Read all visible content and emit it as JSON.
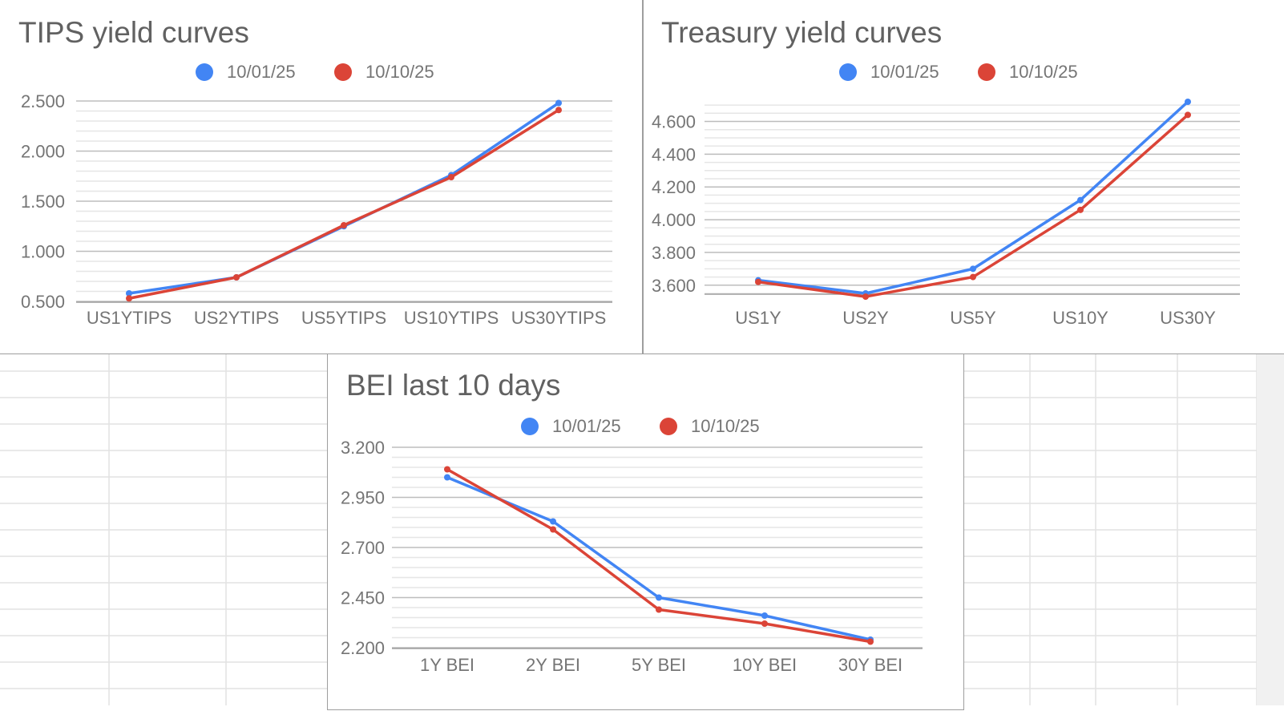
{
  "colors": {
    "series_a": "#4285f4",
    "series_b": "#db4437",
    "title_text": "#616161",
    "axis_text": "#757575",
    "gridline_major": "#bdbdbd",
    "gridline_minor": "#e6e6e6",
    "sheet_grid": "#e2e2e2"
  },
  "chart_data": [
    {
      "id": "tips",
      "type": "line",
      "title": "TIPS yield curves",
      "categories": [
        "US1YTIPS",
        "US2YTIPS",
        "US5YTIPS",
        "US10YTIPS",
        "US30YTIPS"
      ],
      "series": [
        {
          "name": "10/01/25",
          "values": [
            0.58,
            0.74,
            1.25,
            1.76,
            2.48
          ]
        },
        {
          "name": "10/10/25",
          "values": [
            0.53,
            0.74,
            1.26,
            1.74,
            2.41
          ]
        }
      ],
      "ylim": [
        0.5,
        2.5
      ],
      "yticks": [
        0.5,
        1.0,
        1.5,
        2.0,
        2.5
      ],
      "ytick_labels": [
        "0.500",
        "1.000",
        "1.500",
        "2.000",
        "2.500"
      ],
      "minor_per_major": 5,
      "legend": "top"
    },
    {
      "id": "treasury",
      "type": "line",
      "title": "Treasury yield curves",
      "categories": [
        "US1Y",
        "US2Y",
        "US5Y",
        "US10Y",
        "US30Y"
      ],
      "series": [
        {
          "name": "10/01/25",
          "values": [
            3.63,
            3.55,
            3.7,
            4.12,
            4.72
          ]
        },
        {
          "name": "10/10/25",
          "values": [
            3.62,
            3.53,
            3.65,
            4.06,
            4.64
          ]
        }
      ],
      "ylim": [
        3.55,
        4.72
      ],
      "yticks": [
        3.6,
        3.8,
        4.0,
        4.2,
        4.4,
        4.6
      ],
      "ytick_labels": [
        "3.600",
        "3.800",
        "4.000",
        "4.200",
        "4.400",
        "4.600"
      ],
      "minor_per_major": 4,
      "legend": "top"
    },
    {
      "id": "bei",
      "type": "line",
      "title": "BEI last 10 days",
      "categories": [
        "1Y BEI",
        "2Y BEI",
        "5Y BEI",
        "10Y BEI",
        "30Y BEI"
      ],
      "series": [
        {
          "name": "10/01/25",
          "values": [
            3.05,
            2.83,
            2.45,
            2.36,
            2.24
          ]
        },
        {
          "name": "10/10/25",
          "values": [
            3.09,
            2.79,
            2.39,
            2.32,
            2.23
          ]
        }
      ],
      "ylim": [
        2.2,
        3.2
      ],
      "yticks": [
        2.2,
        2.45,
        2.7,
        2.95,
        3.2
      ],
      "ytick_labels": [
        "2.200",
        "2.450",
        "2.700",
        "2.950",
        "3.200"
      ],
      "minor_per_major": 5,
      "legend": "top"
    }
  ]
}
